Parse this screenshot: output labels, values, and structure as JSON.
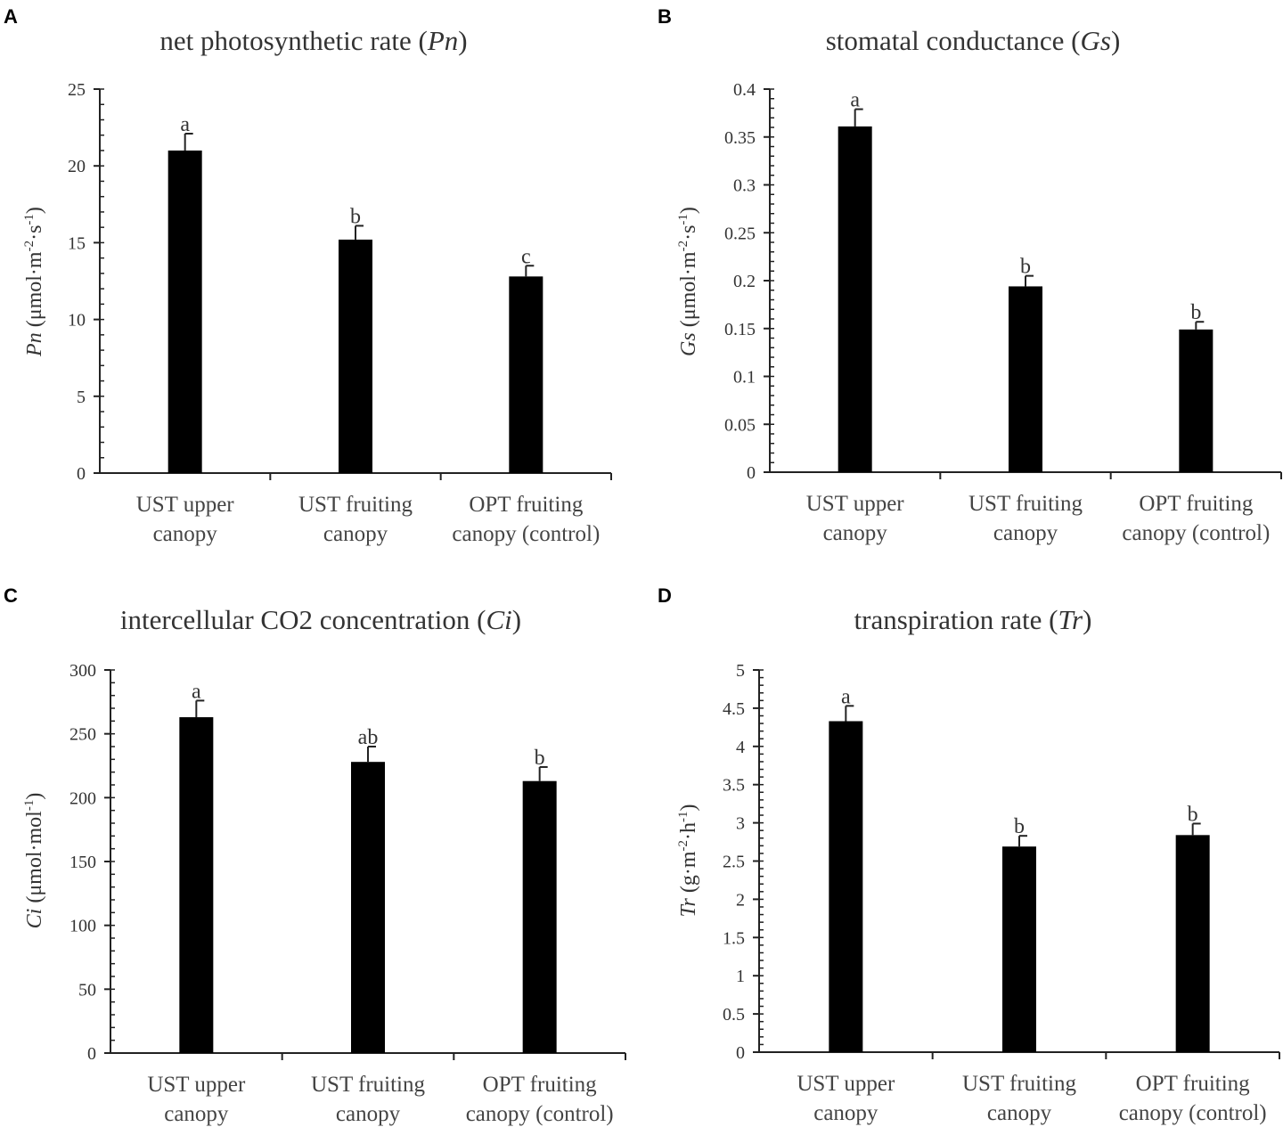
{
  "chart_data": [
    {
      "type": "bar",
      "panel": "A",
      "title": "net photosynthetic rate (Pn)",
      "title_parts": [
        "net photosynthetic rate (",
        "Pn",
        ")"
      ],
      "ylabel": "Pn (μmol·m-2·s-1)",
      "ylabel_parts": [
        "Pn",
        " (μmol·m",
        "-2",
        "·s",
        "-1",
        ")"
      ],
      "categories": [
        "UST upper canopy",
        "UST fruiting canopy",
        "OPT fruiting canopy (control)"
      ],
      "category_lines": [
        [
          "UST upper",
          "canopy"
        ],
        [
          "UST fruiting",
          "canopy"
        ],
        [
          "OPT fruiting",
          "canopy (control)"
        ]
      ],
      "values": [
        21.0,
        15.2,
        12.8
      ],
      "errors": [
        1.1,
        0.9,
        0.7
      ],
      "significance": [
        "a",
        "b",
        "c"
      ],
      "ylim": [
        0,
        25
      ],
      "yticks": [
        0,
        5,
        10,
        15,
        20,
        25
      ],
      "ytick_labels": [
        "0",
        "5",
        "10",
        "15",
        "20",
        "25"
      ],
      "minor_step": 1,
      "bar_color": "#000000"
    },
    {
      "type": "bar",
      "panel": "B",
      "title": "stomatal conductance (Gs)",
      "title_parts": [
        "stomatal conductance (",
        "Gs",
        ")"
      ],
      "ylabel": "Gs (μmol·m-2·s-1)",
      "ylabel_parts": [
        "Gs",
        " (μmol·m",
        "-2",
        "·s",
        "-1",
        ")"
      ],
      "categories": [
        "UST upper canopy",
        "UST fruiting canopy",
        "OPT fruiting canopy (control)"
      ],
      "category_lines": [
        [
          "UST upper",
          "canopy"
        ],
        [
          "UST fruiting",
          "canopy"
        ],
        [
          "OPT fruiting",
          "canopy (control)"
        ]
      ],
      "values": [
        0.361,
        0.194,
        0.149
      ],
      "errors": [
        0.018,
        0.011,
        0.008
      ],
      "significance": [
        "a",
        "b",
        "b"
      ],
      "ylim": [
        0,
        0.4
      ],
      "yticks": [
        0,
        0.05,
        0.1,
        0.15,
        0.2,
        0.25,
        0.3,
        0.35,
        0.4
      ],
      "ytick_labels": [
        "0",
        "0.05",
        "0.1",
        "0.15",
        "0.2",
        "0.25",
        "0.3",
        "0.35",
        "0.4"
      ],
      "minor_step": 0.01,
      "bar_color": "#000000"
    },
    {
      "type": "bar",
      "panel": "C",
      "title": "intercellular CO2 concentration (Ci)",
      "title_parts": [
        "intercellular CO2 concentration (",
        "Ci",
        ")"
      ],
      "ylabel": "Ci (μmol·mol-1)",
      "ylabel_parts": [
        "Ci",
        " (μmol·mol",
        "-1",
        ")"
      ],
      "categories": [
        "UST upper canopy",
        "UST fruiting canopy",
        "OPT fruiting canopy (control)"
      ],
      "category_lines": [
        [
          "UST upper",
          "canopy"
        ],
        [
          "UST fruiting",
          "canopy"
        ],
        [
          "OPT fruiting",
          "canopy (control)"
        ]
      ],
      "values": [
        263,
        228,
        213
      ],
      "errors": [
        13,
        12,
        11
      ],
      "significance": [
        "a",
        "ab",
        "b"
      ],
      "ylim": [
        0,
        300
      ],
      "yticks": [
        0,
        50,
        100,
        150,
        200,
        250,
        300
      ],
      "ytick_labels": [
        "0",
        "50",
        "100",
        "150",
        "200",
        "250",
        "300"
      ],
      "minor_step": 10,
      "bar_color": "#000000"
    },
    {
      "type": "bar",
      "panel": "D",
      "title": "transpiration rate (Tr)",
      "title_parts": [
        "transpiration rate (",
        "Tr",
        ")"
      ],
      "ylabel": "Tr (g·m-2·h-1)",
      "ylabel_parts": [
        "Tr",
        " (g·m",
        "-2",
        "·h",
        "-1",
        ")"
      ],
      "categories": [
        "UST upper canopy",
        "UST fruiting canopy",
        "OPT fruiting canopy (control)"
      ],
      "category_lines": [
        [
          "UST upper",
          "canopy"
        ],
        [
          "UST fruiting",
          "canopy"
        ],
        [
          "OPT fruiting",
          "canopy (control)"
        ]
      ],
      "values": [
        4.33,
        2.69,
        2.84
      ],
      "errors": [
        0.2,
        0.14,
        0.15
      ],
      "significance": [
        "a",
        "b",
        "b"
      ],
      "ylim": [
        0,
        5
      ],
      "yticks": [
        0,
        0.5,
        1,
        1.5,
        2,
        2.5,
        3,
        3.5,
        4,
        4.5,
        5
      ],
      "ytick_labels": [
        "0",
        "0.5",
        "1",
        "1.5",
        "2",
        "2.5",
        "3",
        "3.5",
        "4",
        "4.5",
        "5"
      ],
      "minor_step": 0.1,
      "bar_color": "#000000"
    }
  ]
}
